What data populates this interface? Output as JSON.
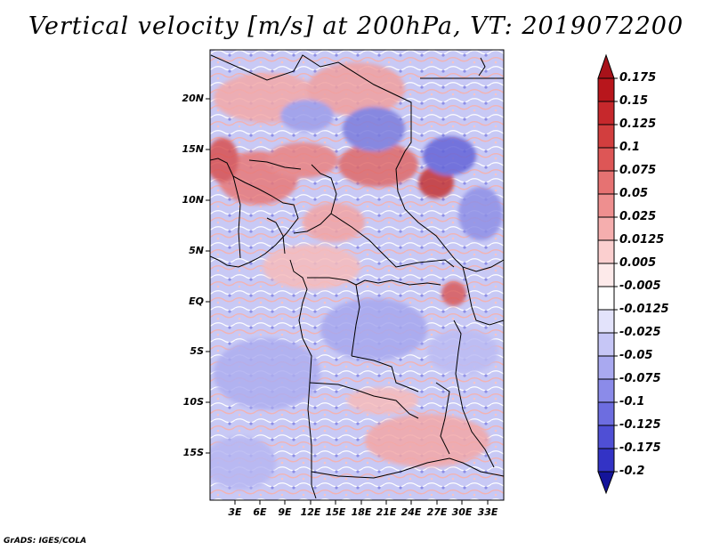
{
  "title": "Vertical velocity [m/s] at 200hPa, VT: 2019072200",
  "credit": "GrADS: IGES/COLA",
  "map": {
    "lat_labels": [
      "20N",
      "15N",
      "10N",
      "5N",
      "EQ",
      "5S",
      "10S",
      "15S"
    ],
    "lon_labels": [
      "3E",
      "6E",
      "9E",
      "12E",
      "15E",
      "18E",
      "21E",
      "24E",
      "27E",
      "30E",
      "33E"
    ]
  },
  "colorbar": {
    "labels": [
      "0.175",
      "0.15",
      "0.125",
      "0.1",
      "0.075",
      "0.05",
      "0.025",
      "0.0125",
      "0.005",
      "-0.005",
      "-0.0125",
      "-0.025",
      "-0.05",
      "-0.075",
      "-0.1",
      "-0.125",
      "-0.175",
      "-0.2"
    ],
    "colors": [
      "#b8161c",
      "#c6282c",
      "#d23e3e",
      "#dd5656",
      "#e67272",
      "#ee8f8f",
      "#f5aeae",
      "#fbcfcf",
      "#fdeaea",
      "#ffffff",
      "#e3e3fb",
      "#c6c6f6",
      "#a9a9f0",
      "#8b8be9",
      "#6d6de0",
      "#4f4fd5",
      "#3333c5",
      "#1c1cab"
    ],
    "top_arrow_color": "#a8121a",
    "bottom_arrow_color": "#14149a"
  }
}
